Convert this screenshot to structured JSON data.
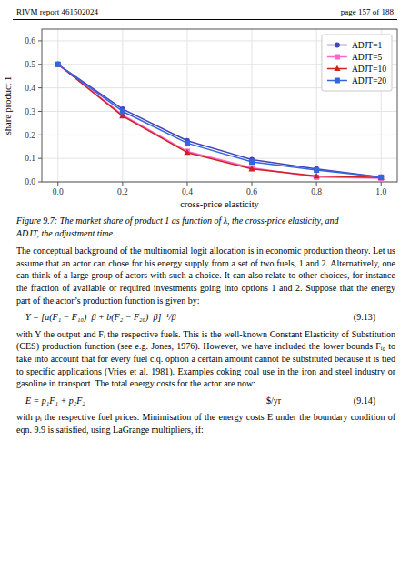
{
  "chart_data": {
    "type": "line",
    "xlabel": "cross-price elasticity",
    "ylabel": "share product 1",
    "x": [
      0,
      0.2,
      0.4,
      0.6,
      0.8,
      1.0
    ],
    "series": [
      {
        "name": "ADJT=1",
        "color": "#4444bb",
        "marker": "circle",
        "values": [
          0.5,
          0.31,
          0.175,
          0.095,
          0.055,
          0.02
        ]
      },
      {
        "name": "ADJT=5",
        "color": "#ff66cc",
        "marker": "square",
        "values": [
          0.5,
          0.285,
          0.13,
          0.06,
          0.02,
          0.015
        ]
      },
      {
        "name": "ADJT=10",
        "color": "#cc2222",
        "marker": "triangle",
        "values": [
          0.5,
          0.28,
          0.125,
          0.055,
          0.025,
          0.018
        ]
      },
      {
        "name": "ADJT=20",
        "color": "#3366dd",
        "marker": "square",
        "values": [
          0.5,
          0.3,
          0.165,
          0.085,
          0.05,
          0.02
        ]
      }
    ],
    "xlim": [
      -0.05,
      1.05
    ],
    "ylim": [
      0,
      0.65
    ],
    "xticks": [
      {
        "value": 0,
        "label": "0.0"
      },
      0.2,
      0.4,
      0.6,
      0.8,
      {
        "value": 1.0,
        "label": "1.0"
      }
    ],
    "yticks": [
      {
        "value": 0,
        "label": "0.0"
      },
      0.1,
      0.2,
      0.3,
      0.4,
      0.5,
      0.6
    ],
    "grid": true,
    "legend": "upper right"
  },
  "header_left": "RIVM report 461502024",
  "header_right": "page 157 of 188",
  "caption": [
    "Figure 9.7: The market share of product 1 as function of λ, the cross-price elasticity, and",
    "ADJT, the adjustment time."
  ],
  "paragraphs": [
    "The conceptual background of the multinomial logit allocation is in economic production theory. Let us assume that an actor can chose for his energy supply from a set of two fuels, 1 and 2. Alternatively, one can think of a large group of actors with such a choice. It can also relate to other choices, for instance the fraction of available or required investments going into options 1 and 2. Suppose that the energy part of the actor’s production function is given by:",
    "with Y the output and Fᵢ the respective fuels. This is the well-known Constant Elasticity of Substitution (CES) production function (see e.g. Jones, 1976). However, we have included the lower bounds Fᵢ₀ to take into account that for every fuel c.q. option a certain amount cannot be substituted because it is tied to specific applications (Vries et al. 1981). Examples coking coal use in the iron and steel industry or gasoline in transport. The total energy costs for the actor are now:",
    "with pᵢ the respective fuel prices. Minimisation of the energy costs E under the boundary condition of eqn. 9.9 is satisfied, using LaGrange multipliers, if:"
  ],
  "equations": [
    {
      "text": "Y = [a(F₁ − F₁₀)⁻β + b(F₂ − F₂₀)⁻β]⁻¹/β",
      "number": "(9.13)"
    },
    {
      "text": "E = p₁F₁ + p₂F₂",
      "unit": "$/yr",
      "number": "(9.14)"
    }
  ]
}
